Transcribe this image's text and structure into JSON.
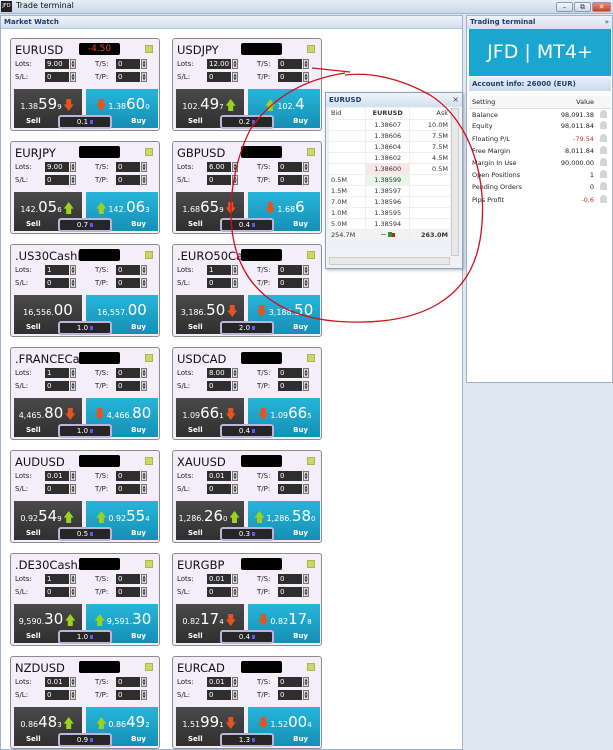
{
  "window": {
    "title": "Trade terminal",
    "logo": "JFD",
    "buttons": [
      "minimize",
      "restore",
      "close"
    ]
  },
  "market_watch": {
    "title": "Market Watch",
    "labels": {
      "lots": "Lots:",
      "sl": "S/L:",
      "ts": "T/S:",
      "tp": "T/P:",
      "sell": "Sell",
      "buy": "Buy"
    },
    "cards": [
      {
        "symbol": "EURUSD",
        "badge": "-4.50",
        "lots": "9.00",
        "sl": "0",
        "ts": "0",
        "tp": "0",
        "sell": {
          "s": "1.38",
          "b": "59",
          "p": "9",
          "dir": "down"
        },
        "buy": {
          "s": "1.38",
          "b": "60",
          "p": "0",
          "dir": "down"
        },
        "spread": "0.1"
      },
      {
        "symbol": "USDJPY",
        "badge": "",
        "lots": "12.00",
        "sl": "0",
        "ts": "0",
        "tp": "0",
        "sell": {
          "s": "102.",
          "b": "49",
          "p": "7",
          "dir": "up"
        },
        "buy": {
          "s": "102.",
          "b": "4",
          "p": "",
          "dir": "up"
        },
        "spread": "0.2"
      },
      {
        "symbol": "EURJPY",
        "badge": "",
        "lots": "9.00",
        "sl": "0",
        "ts": "0",
        "tp": "0",
        "sell": {
          "s": "142.",
          "b": "05",
          "p": "6",
          "dir": "up"
        },
        "buy": {
          "s": "142.",
          "b": "06",
          "p": "3",
          "dir": "up"
        },
        "spread": "0.7"
      },
      {
        "symbol": "GBPUSD",
        "badge": "",
        "lots": "6.00",
        "sl": "0",
        "ts": "0",
        "tp": "0",
        "sell": {
          "s": "1.68",
          "b": "65",
          "p": "9",
          "dir": "down"
        },
        "buy": {
          "s": "1.68",
          "b": "6",
          "p": "",
          "dir": "down"
        },
        "spread": "0.4"
      },
      {
        "symbol": ".US30CashNY",
        "badge": "",
        "lots": "1",
        "sl": "0",
        "ts": "0",
        "tp": "0",
        "sell": {
          "s": "16,556.",
          "b": "00",
          "p": "",
          "dir": ""
        },
        "buy": {
          "s": "16,557.",
          "b": "00",
          "p": "",
          "dir": ""
        },
        "spread": "1.0"
      },
      {
        "symbol": ".EURO50Cash",
        "badge": "",
        "lots": "1",
        "sl": "0",
        "ts": "0",
        "tp": "0",
        "sell": {
          "s": "3,186.",
          "b": "50",
          "p": "",
          "dir": "down"
        },
        "buy": {
          "s": "3,188.",
          "b": "50",
          "p": "",
          "dir": "down"
        },
        "spread": "2.0"
      },
      {
        "symbol": ".FRANCECash",
        "badge": "",
        "lots": "1",
        "sl": "0",
        "ts": "0",
        "tp": "0",
        "sell": {
          "s": "4,465.",
          "b": "80",
          "p": "",
          "dir": "down"
        },
        "buy": {
          "s": "4,466.",
          "b": "80",
          "p": "",
          "dir": "down"
        },
        "spread": "1.0"
      },
      {
        "symbol": "USDCAD",
        "badge": "",
        "lots": "8.00",
        "sl": "0",
        "ts": "0",
        "tp": "0",
        "sell": {
          "s": "1.09",
          "b": "66",
          "p": "1",
          "dir": "down"
        },
        "buy": {
          "s": "1.09",
          "b": "66",
          "p": "5",
          "dir": "down"
        },
        "spread": "0.4"
      },
      {
        "symbol": "AUDUSD",
        "badge": "",
        "lots": "0.01",
        "sl": "0",
        "ts": "0",
        "tp": "0",
        "sell": {
          "s": "0.92",
          "b": "54",
          "p": "9",
          "dir": "up"
        },
        "buy": {
          "s": "0.92",
          "b": "55",
          "p": "4",
          "dir": "up"
        },
        "spread": "0.5"
      },
      {
        "symbol": "XAUUSD",
        "badge": "",
        "lots": "0.01",
        "sl": "0",
        "ts": "0",
        "tp": "0",
        "sell": {
          "s": "1,286.",
          "b": "26",
          "p": "0",
          "dir": "up"
        },
        "buy": {
          "s": "1,286.",
          "b": "58",
          "p": "0",
          "dir": "up"
        },
        "spread": "0.3"
      },
      {
        "symbol": ".DE30CashXE",
        "badge": "",
        "lots": "1",
        "sl": "0",
        "ts": "0",
        "tp": "0",
        "sell": {
          "s": "9,590.",
          "b": "30",
          "p": "",
          "dir": "up"
        },
        "buy": {
          "s": "9,591.",
          "b": "30",
          "p": "",
          "dir": "up"
        },
        "spread": "1.0"
      },
      {
        "symbol": "EURGBP",
        "badge": "",
        "lots": "0.01",
        "sl": "0",
        "ts": "0",
        "tp": "0",
        "sell": {
          "s": "0.82",
          "b": "17",
          "p": "4",
          "dir": "down"
        },
        "buy": {
          "s": "0.82",
          "b": "17",
          "p": "8",
          "dir": "down"
        },
        "spread": "0.4"
      },
      {
        "symbol": "NZDUSD",
        "badge": "",
        "lots": "0.01",
        "sl": "0",
        "ts": "0",
        "tp": "0",
        "sell": {
          "s": "0.86",
          "b": "48",
          "p": "3",
          "dir": "up"
        },
        "buy": {
          "s": "0.86",
          "b": "49",
          "p": "2",
          "dir": "up"
        },
        "spread": "0.9"
      },
      {
        "symbol": "EURCAD",
        "badge": "",
        "lots": "0.01",
        "sl": "0",
        "ts": "0",
        "tp": "0",
        "sell": {
          "s": "1.51",
          "b": "99",
          "p": "1",
          "dir": "down"
        },
        "buy": {
          "s": "1.52",
          "b": "00",
          "p": "4",
          "dir": "down"
        },
        "spread": "1.3"
      }
    ]
  },
  "depth": {
    "title": "EURUSD",
    "close": "×",
    "headers": {
      "bid": "Bid",
      "symbol": "EURUSD",
      "ask": "Ask"
    },
    "rows": [
      {
        "bid": "",
        "price": "1.38607",
        "ask": "10.0M"
      },
      {
        "bid": "",
        "price": "1.38606",
        "ask": "7.5M"
      },
      {
        "bid": "",
        "price": "1.38604",
        "ask": "7.5M"
      },
      {
        "bid": "",
        "price": "1.38602",
        "ask": "4.5M"
      },
      {
        "bid": "",
        "price": "1.38600",
        "ask": "0.5M",
        "best": "ask"
      },
      {
        "bid": "0.5M",
        "price": "1.38599",
        "ask": "",
        "best": "bid"
      },
      {
        "bid": "1.5M",
        "price": "1.38597",
        "ask": ""
      },
      {
        "bid": "7.0M",
        "price": "1.38596",
        "ask": ""
      },
      {
        "bid": "1.0M",
        "price": "1.38595",
        "ask": ""
      },
      {
        "bid": "5.0M",
        "price": "1.38594",
        "ask": ""
      }
    ],
    "totals": {
      "bid": "254.7M",
      "ask": "263.0M"
    }
  },
  "terminal": {
    "title": "Trading terminal",
    "brand": "JFD | MT4+",
    "account": "Account info: 26000 (EUR)",
    "headers": {
      "setting": "Setting",
      "value": "Value"
    },
    "rows": [
      {
        "name": "Balance",
        "value": "98,091.38"
      },
      {
        "name": "Equity",
        "value": "98,011.84"
      },
      {
        "name": "Floating P/L",
        "value": "-79.54",
        "neg": true
      },
      {
        "name": "Free Margin",
        "value": "8,011.84"
      },
      {
        "name": "Margin In Use",
        "value": "90,000.00"
      },
      {
        "name": "Open Positions",
        "value": "1"
      },
      {
        "name": "Pending Orders",
        "value": "0"
      },
      {
        "name": "Pips Profit",
        "value": "-0.6",
        "neg": true
      }
    ]
  },
  "colors": {
    "buy": "#1ea8cc",
    "sell": "#3c3c3c",
    "down": "#e4541f",
    "up": "#9ad21f",
    "annotation": "#d0101a",
    "negative": "#c0392b"
  }
}
